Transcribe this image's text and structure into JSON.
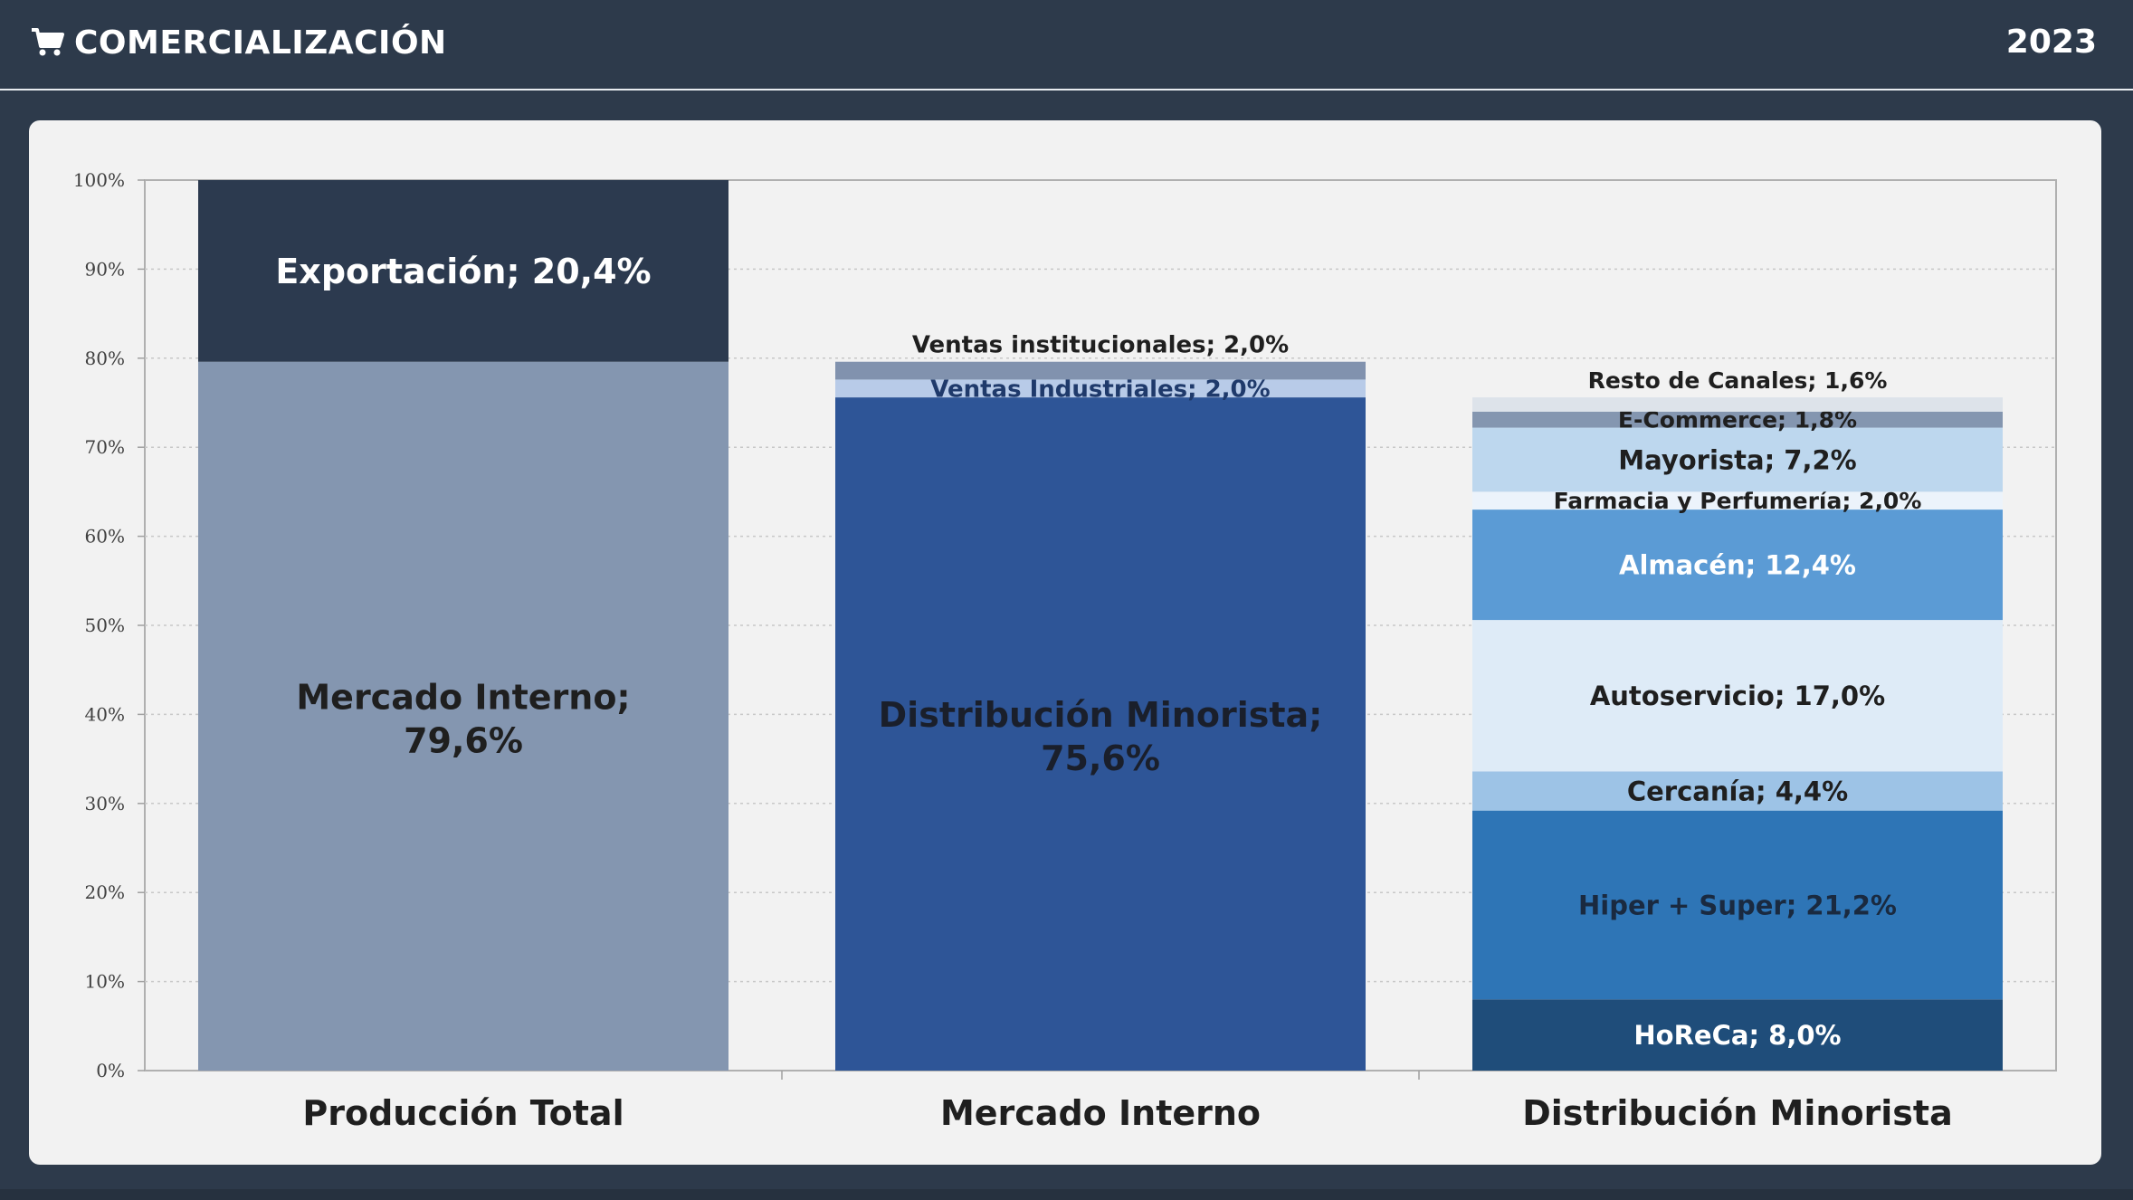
{
  "header": {
    "title": "COMERCIALIZACIÓN",
    "year": "2023",
    "icon": "shopping-cart-icon"
  },
  "chart_data": {
    "type": "bar",
    "stacked": true,
    "ylim": [
      0,
      100
    ],
    "yticks": [
      "0%",
      "10%",
      "20%",
      "30%",
      "40%",
      "50%",
      "60%",
      "70%",
      "80%",
      "90%",
      "100%"
    ],
    "grid": true,
    "categories": [
      "Producción Total",
      "Mercado Interno",
      "Distribución Minorista"
    ],
    "bars": [
      {
        "category": "Producción Total",
        "segments": [
          {
            "label": "Mercado Interno;",
            "label2": "79,6%",
            "value": 79.6,
            "color": "#8496b0",
            "text_color": "#1f1f1f",
            "font": 38
          },
          {
            "label": "Exportación; 20,4%",
            "value": 20.4,
            "color": "#2c3a4f",
            "text_color": "#ffffff",
            "font": 38
          }
        ]
      },
      {
        "category": "Mercado Interno",
        "segments": [
          {
            "label": "Distribución Minorista;",
            "label2": "75,6%",
            "value": 75.6,
            "color": "#2e5597",
            "text_color": "#1a1f2b",
            "font": 38
          },
          {
            "label": "Ventas Industriales; 2,0%",
            "value": 2.0,
            "color": "#b8cbe8",
            "text_color": "#1f3a6b",
            "font": 26
          },
          {
            "label": "Ventas institucionales; 2,0%",
            "value": 2.0,
            "color": "#8192ae",
            "text_color": "#1f1f1f",
            "font": 26,
            "label_above": true
          }
        ]
      },
      {
        "category": "Distribución Minorista",
        "segments": [
          {
            "label": "HoReCa; 8,0%",
            "value": 8.0,
            "color": "#1f4d7a",
            "text_color": "#ffffff",
            "font": 29
          },
          {
            "label": "Hiper + Super; 21,2%",
            "value": 21.2,
            "color": "#2e75b6",
            "text_color": "#1a2a40",
            "font": 29
          },
          {
            "label": "Cercanía; 4,4%",
            "value": 4.4,
            "color": "#9dc3e6",
            "text_color": "#1f1f1f",
            "font": 29
          },
          {
            "label": "Autoservicio; 17,0%",
            "value": 17.0,
            "color": "#deebf7",
            "text_color": "#1f1f1f",
            "font": 29
          },
          {
            "label": "Almacén; 12,4%",
            "value": 12.4,
            "color": "#5b9bd5",
            "text_color": "#ffffff",
            "font": 29
          },
          {
            "label": "Farmacia y Perfumería; 2,0%",
            "value": 2.0,
            "color": "#ecf3fb",
            "text_color": "#1f1f1f",
            "font": 25
          },
          {
            "label": "Mayorista; 7,2%",
            "value": 7.2,
            "color": "#bdd7ee",
            "text_color": "#1f1f1f",
            "font": 29
          },
          {
            "label": "E-Commerce; 1,8%",
            "value": 1.8,
            "color": "#8496b0",
            "text_color": "#1f1f1f",
            "font": 25
          },
          {
            "label": "Resto de Canales; 1,6%",
            "value": 1.6,
            "color": "#dde3ea",
            "text_color": "#1f1f1f",
            "font": 25,
            "label_above": true
          }
        ]
      }
    ]
  }
}
